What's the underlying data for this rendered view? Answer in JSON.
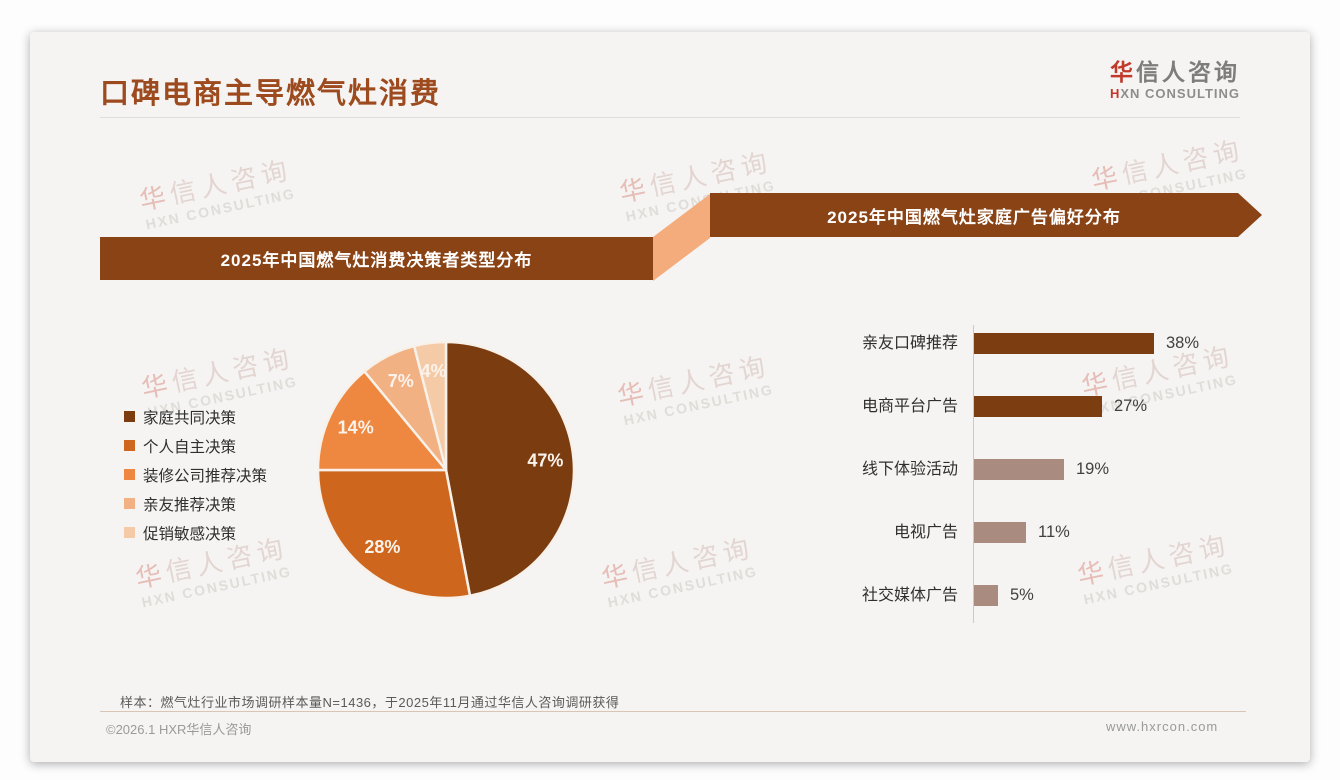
{
  "page": {
    "title": "口碑电商主导燃气灶消费",
    "logo": {
      "cn": "华信人咨询",
      "en": "HXN CONSULTING"
    },
    "watermark": {
      "cn": "华信人咨询",
      "en": "HXN CONSULTING"
    },
    "note": "样本：燃气灶行业市场调研样本量N=1436，于2025年11月通过华信人咨询调研获得",
    "footer_left": "©2026.1 HXR华信人咨询",
    "footer_right": "www.hxrcon.com"
  },
  "colors": {
    "title_text": "#9c4a1e",
    "logo_red": "#c0392b",
    "banner_brown": "#8a4315",
    "connector_peach": "#f5ac7d",
    "bar_dark_brown": "#7c3e11",
    "bar_mauve": "#a98b80",
    "card_bg": "#f5f4f2"
  },
  "chart_data": [
    {
      "type": "pie",
      "title": "2025年中国燃气灶消费决策者类型分布",
      "labels": [
        "家庭共同决策",
        "个人自主决策",
        "装修公司推荐决策",
        "亲友推荐决策",
        "促销敏感决策"
      ],
      "values": [
        47,
        28,
        14,
        7,
        4
      ],
      "colors": [
        "#7b3d10",
        "#ce661e",
        "#ee8840",
        "#f2b183",
        "#f5cba7"
      ],
      "value_label_format": "{v}%",
      "start_angle_deg": 0,
      "direction": "clockwise",
      "legend_position": "left",
      "slice_label_color": "#fbf3eb"
    },
    {
      "type": "bar",
      "title": "2025年中国燃气灶家庭广告偏好分布",
      "orientation": "horizontal",
      "categories": [
        "亲友口碑推荐",
        "电商平台广告",
        "线下体验活动",
        "电视广告",
        "社交媒体广告"
      ],
      "values": [
        38,
        27,
        19,
        11,
        5
      ],
      "bar_colors": [
        "#7c3e11",
        "#7c3e11",
        "#a98b80",
        "#a98b80",
        "#a98b80"
      ],
      "value_label_format": "{v}%",
      "xlim": [
        0,
        40
      ],
      "grid": false,
      "legend_position": "none"
    }
  ]
}
